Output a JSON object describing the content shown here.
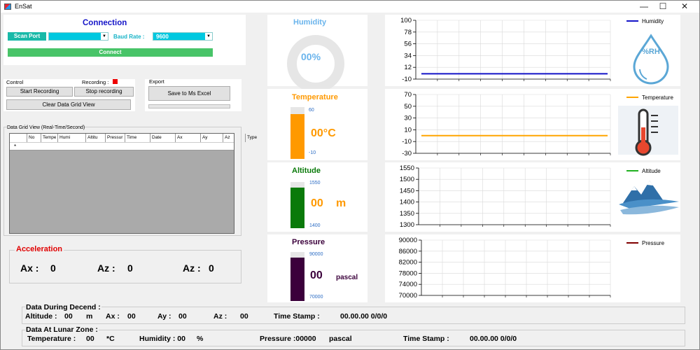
{
  "window": {
    "title": "EnSat",
    "minimize": "—",
    "maximize": "☐",
    "close": "✕"
  },
  "connection": {
    "title": "Connection",
    "scan_port_label": "Scan Port",
    "port_value": "",
    "baud_label": "Baud Rate :",
    "baud_value": "9600",
    "connect_label": "Connect"
  },
  "control": {
    "group_label": "Control",
    "recording_label": "Recording :",
    "start_label": "Start Recording",
    "stop_label": "Stop recording",
    "clear_label": "Clear Data Grid View"
  },
  "export": {
    "group_label": "Export",
    "save_label": "Save to Ms Excel"
  },
  "grid": {
    "title": "Data Grid View (Real-Time/Second)",
    "columns": [
      "No",
      "Tempera",
      "Humi",
      "Altitu",
      "Pressur",
      "Time",
      "Date",
      "Ax",
      "Ay",
      "Az",
      "Type"
    ],
    "new_row_marker": "*"
  },
  "acceleration": {
    "title": "Acceleration",
    "ax_label": "Ax :",
    "ax_value": "0",
    "az1_label": "Az :",
    "az1_value": "0",
    "az2_label": "Az :",
    "az2_value": "0"
  },
  "humidity": {
    "title": "Humidity",
    "value": "00%",
    "fraction": 0
  },
  "temperature": {
    "title": "Temperature",
    "value": "00°C",
    "max": "60",
    "min": "-10",
    "fraction": 0.87
  },
  "altitude": {
    "title": "Altitude",
    "value": "00",
    "unit": "m",
    "max": "1550",
    "min": "1400",
    "fraction": 0.88
  },
  "pressure": {
    "title": "Pressure",
    "value": "00",
    "unit": "pascal",
    "max": "90000",
    "min": "70000",
    "fraction": 0.88
  },
  "descend": {
    "title": "Data During Decend :",
    "altitude_label": "Altitude :",
    "altitude_value": "00",
    "altitude_unit": "m",
    "ax_label": "Ax :",
    "ax_value": "00",
    "ay_label": "Ay :",
    "ay_value": "00",
    "az_label": "Az :",
    "az_value": "00",
    "ts_label": "Time Stamp :",
    "ts_value": "00.00.00 0/0/0"
  },
  "lunar": {
    "title": "Data At Lunar Zone :",
    "temp_label": "Temperature :",
    "temp_value": "00",
    "temp_unit": "*C",
    "hum_label": "Humidity : 00",
    "hum_unit": "%",
    "pres_label": "Pressure :00000",
    "pres_unit": "pascal",
    "ts_label": "Time Stamp :",
    "ts_value": "00.00.00 0/0/0"
  },
  "colors": {
    "humidity": "#1414c8",
    "temperature": "#ffa500",
    "altitude": "#20b020",
    "pressure": "#800000",
    "temp_bar": "#ff9900",
    "alt_bar": "#0a7a0a",
    "pres_bar": "#3b003b"
  },
  "chart_data": [
    {
      "type": "line",
      "series": [
        {
          "name": "Humidity",
          "values": [
            0,
            0
          ]
        }
      ],
      "x": [
        0,
        1
      ],
      "ylim": [
        -10,
        100
      ],
      "yticks": [
        "100",
        "78",
        "56",
        "34",
        "12",
        "-10"
      ],
      "icon": "humidity-drop-icon",
      "icon_text": "%RH"
    },
    {
      "type": "line",
      "series": [
        {
          "name": "Temperature",
          "values": [
            0,
            0
          ]
        }
      ],
      "x": [
        0,
        1
      ],
      "ylim": [
        -30,
        70
      ],
      "yticks": [
        "70",
        "50",
        "30",
        "10",
        "-10",
        "-30"
      ],
      "icon": "thermometer-icon"
    },
    {
      "type": "line",
      "series": [
        {
          "name": "Altitude",
          "values": []
        }
      ],
      "x": [],
      "ylim": [
        1300,
        1550
      ],
      "yticks": [
        "1550",
        "1500",
        "1450",
        "1400",
        "1350",
        "1300"
      ],
      "icon": "mountain-icon"
    },
    {
      "type": "line",
      "series": [
        {
          "name": "Pressure",
          "values": []
        }
      ],
      "x": [],
      "ylim": [
        70000,
        90000
      ],
      "yticks": [
        "90000",
        "86000",
        "82000",
        "78000",
        "74000",
        "70000"
      ]
    }
  ]
}
